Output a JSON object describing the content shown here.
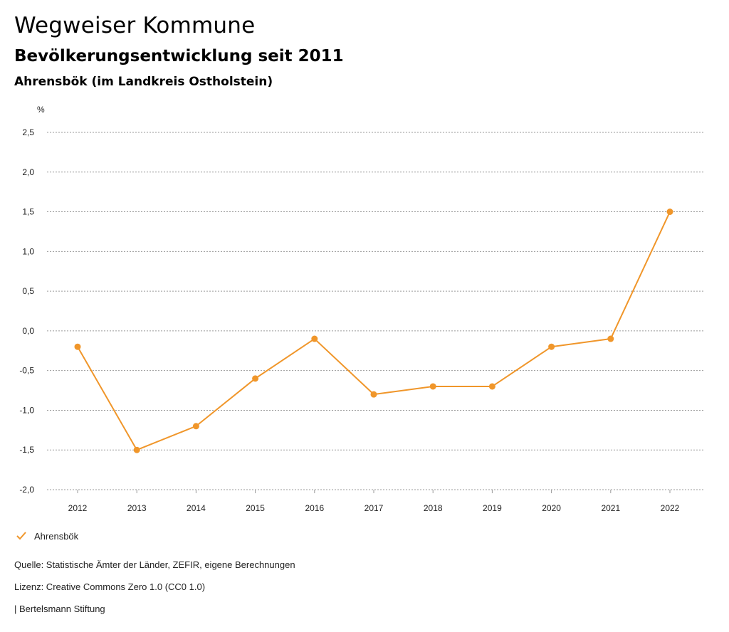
{
  "header": {
    "title": "Wegweiser Kommune",
    "subtitle": "Bevölkerungsentwicklung seit 2011",
    "region": "Ahrensbök (im Landkreis Ostholstein)"
  },
  "chart_data": {
    "type": "line",
    "title": "Bevölkerungsentwicklung seit 2011",
    "xlabel": "",
    "ylabel": "%",
    "categories": [
      "2012",
      "2013",
      "2014",
      "2015",
      "2016",
      "2017",
      "2018",
      "2019",
      "2020",
      "2021",
      "2022"
    ],
    "series": [
      {
        "name": "Ahrensbök",
        "color": "#f0962a",
        "values": [
          -0.2,
          -1.5,
          -1.2,
          -0.6,
          -0.1,
          -0.8,
          -0.7,
          -0.7,
          -0.2,
          -0.1,
          1.5
        ]
      }
    ],
    "ylim": [
      -2.0,
      2.5
    ],
    "yticks": [
      2.5,
      2.0,
      1.5,
      1.0,
      0.5,
      0.0,
      -0.5,
      -1.0,
      -1.5,
      -2.0
    ],
    "ytick_labels": [
      "2,5",
      "2,0",
      "1,5",
      "1,0",
      "0,5",
      "0,0",
      "-0,5",
      "-1,0",
      "-1,5",
      "-2,0"
    ],
    "grid": true,
    "legend": "bottom-left"
  },
  "legend": {
    "label": "Ahrensbök"
  },
  "footer": {
    "source": "Quelle: Statistische Ämter der Länder, ZEFIR, eigene Berechnungen",
    "license": "Lizenz: Creative Commons Zero 1.0 (CC0 1.0)",
    "brand": "| Bertelsmann Stiftung"
  }
}
